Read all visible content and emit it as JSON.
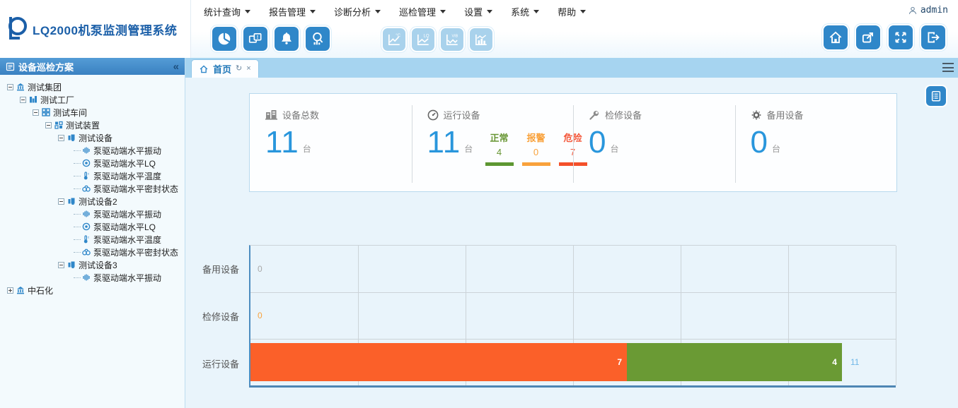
{
  "theme": {
    "accent": "#2f87c9",
    "accent_disabled": "#a9d2ec",
    "panel_border": "#b8d9ee",
    "number_blue": "#2996dc"
  },
  "app": {
    "logo_title": "LQ2000机泵监测管理系统",
    "user": "admin"
  },
  "menu": {
    "items": [
      "统计查询",
      "报告管理",
      "诊断分析",
      "巡检管理",
      "设置",
      "系统",
      "帮助"
    ]
  },
  "toolbar": {
    "trend_icons": [
      {
        "glyph": "°C"
      },
      {
        "glyph": "LQ"
      },
      {
        "glyph": "VIB"
      }
    ]
  },
  "sidebar": {
    "title": "设备巡检方案",
    "collapse_glyph": "«",
    "tree": [
      {
        "label": "测试集团"
      },
      {
        "label": "测试工厂"
      },
      {
        "label": "测试车间"
      },
      {
        "label": "测试装置"
      },
      {
        "label": "测试设备"
      },
      {
        "label": "泵驱动端水平振动"
      },
      {
        "label": "泵驱动端水平LQ"
      },
      {
        "label": "泵驱动端水平温度"
      },
      {
        "label": "泵驱动端水平密封状态"
      },
      {
        "label": "测试设备2"
      },
      {
        "label": "泵驱动端水平振动"
      },
      {
        "label": "泵驱动端水平LQ"
      },
      {
        "label": "泵驱动端水平温度"
      },
      {
        "label": "泵驱动端水平密封状态"
      },
      {
        "label": "测试设备3"
      },
      {
        "label": "泵驱动端水平振动"
      },
      {
        "label": "中石化"
      }
    ]
  },
  "tabs": {
    "home": {
      "label": "首页",
      "refresh_glyph": "↻",
      "close_glyph": "×"
    }
  },
  "stats": {
    "cards": [
      {
        "label": "设备总数",
        "value": "11",
        "unit": "台"
      },
      {
        "label": "运行设备",
        "value": "11",
        "unit": "台",
        "breakdown": [
          {
            "label": "正常",
            "value": "4",
            "color": "#689634"
          },
          {
            "label": "报警",
            "value": "0",
            "color": "#f9a23c"
          },
          {
            "label": "危险",
            "value": "7",
            "color": "#f4573a"
          }
        ]
      },
      {
        "label": "检修设备",
        "value": "0",
        "unit": "台"
      },
      {
        "label": "备用设备",
        "value": "0",
        "unit": "台"
      }
    ]
  },
  "chart_data": {
    "type": "bar",
    "orientation": "horizontal",
    "stacked": true,
    "title": "",
    "xlabel": "",
    "ylabel": "",
    "categories": [
      "备用设备",
      "检修设备",
      "运行设备"
    ],
    "rows": [
      {
        "category": "备用设备",
        "segments": [],
        "total": 0,
        "total_color": "#a9a9a9"
      },
      {
        "category": "检修设备",
        "segments": [],
        "total": 0,
        "total_color": "#f9a23c"
      },
      {
        "category": "运行设备",
        "segments": [
          {
            "name": "危险",
            "value": 7,
            "color": "#fb6029"
          },
          {
            "name": "正常",
            "value": 4,
            "color": "#6a9a34"
          }
        ],
        "total": 11,
        "total_color": "#6fb7e8"
      }
    ],
    "xlim": [
      0,
      12
    ],
    "grid_step": 2,
    "grid": true,
    "legend": "none",
    "axis_color": "#4e86b4"
  }
}
